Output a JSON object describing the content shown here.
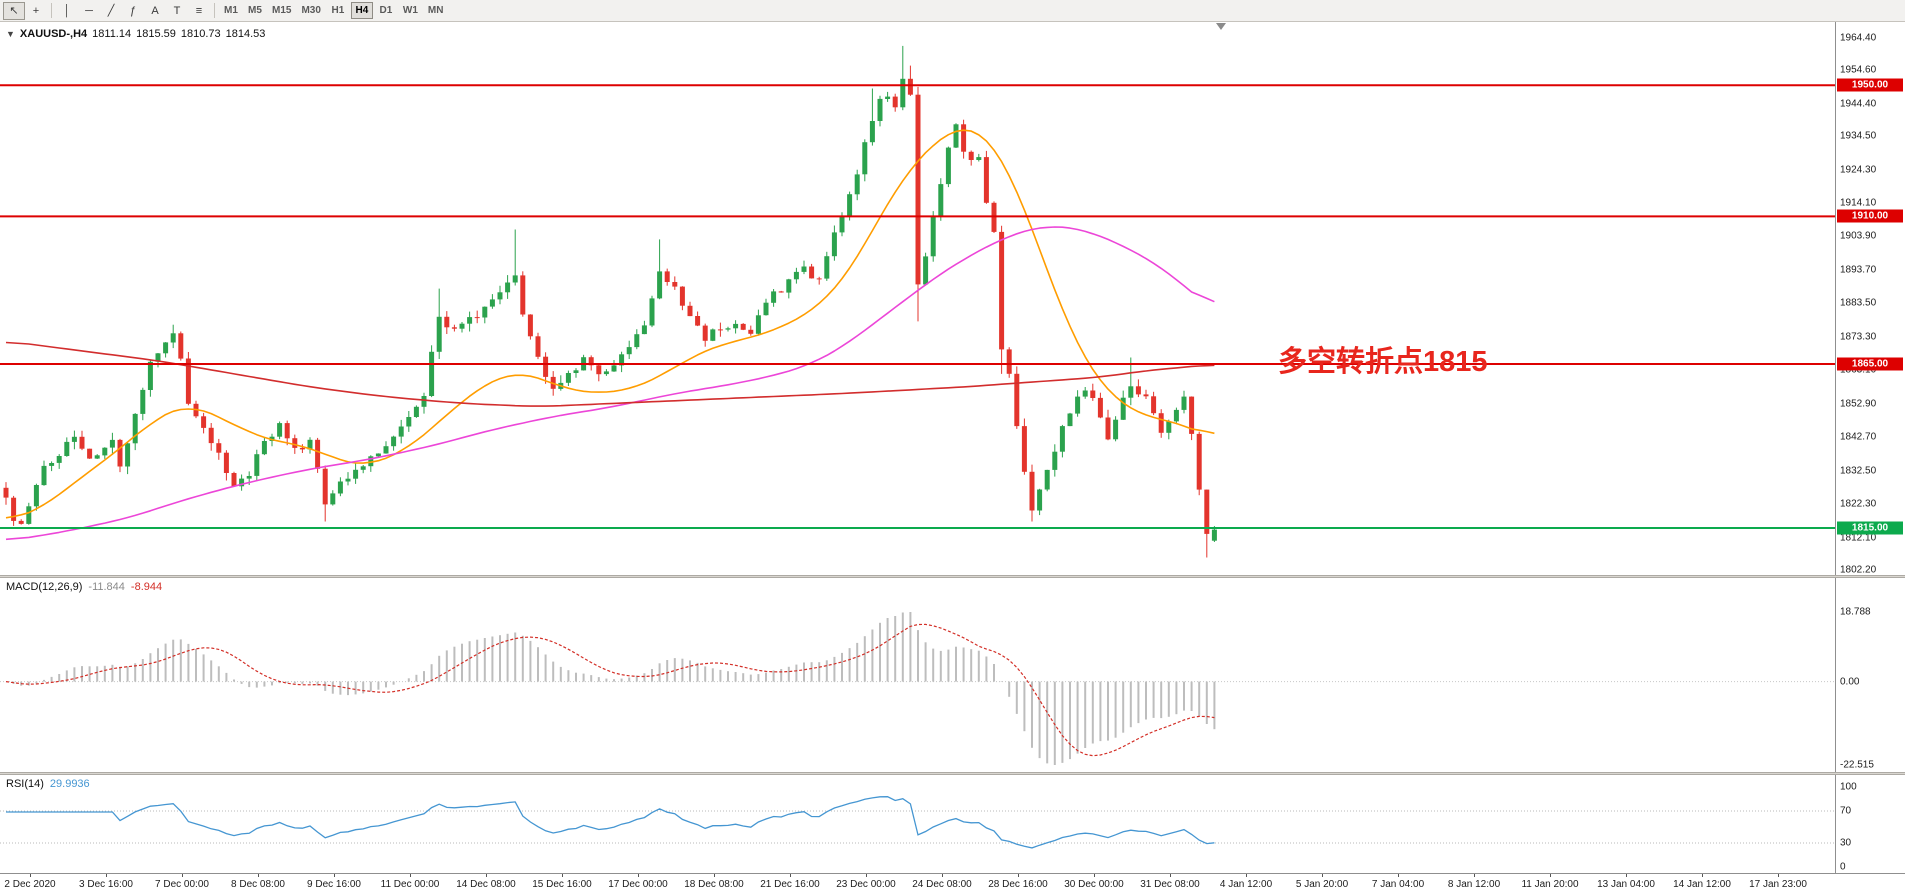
{
  "toolbar": {
    "tools": [
      {
        "name": "cursor",
        "glyph": "↖",
        "active": true
      },
      {
        "name": "crosshair",
        "glyph": "+"
      },
      {
        "sep": true
      },
      {
        "name": "vertical-line",
        "glyph": "│"
      },
      {
        "name": "horizontal-line",
        "glyph": "─"
      },
      {
        "name": "trendline",
        "glyph": "╱"
      },
      {
        "name": "fibonacci",
        "glyph": "ƒ"
      },
      {
        "name": "text",
        "glyph": "A"
      },
      {
        "name": "text-label",
        "glyph": "T"
      },
      {
        "name": "objects-list",
        "glyph": "≡"
      },
      {
        "sep": true
      }
    ],
    "timeframes": [
      "M1",
      "M5",
      "M15",
      "M30",
      "H1",
      "H4",
      "D1",
      "W1",
      "MN"
    ],
    "active_timeframe": "H4"
  },
  "chart_header": {
    "symbol": "XAUUSD-,H4",
    "open": "1811.14",
    "high": "1815.59",
    "low": "1810.73",
    "close": "1814.53"
  },
  "annotation": {
    "text": "多空转折点1815",
    "color": "#e8261d"
  },
  "indicators": {
    "macd": {
      "title": "MACD(12,26,9)",
      "value_main": "-11.844",
      "value_signal": "-8.944",
      "axis": [
        "18.788",
        "0.00",
        "-22.515"
      ],
      "histogram_color": "#bdbdbd",
      "signal_color": "#d32f27"
    },
    "rsi": {
      "title": "RSI(14)",
      "value": "29.9936",
      "axis": [
        "100",
        "70",
        "30",
        "0"
      ],
      "levels": [
        70,
        30
      ],
      "line_color": "#4596d2"
    }
  },
  "time_axis": [
    "2 Dec 2020",
    "3 Dec 16:00",
    "7 Dec 00:00",
    "8 Dec 08:00",
    "9 Dec 16:00",
    "11 Dec 00:00",
    "14 Dec 08:00",
    "15 Dec 16:00",
    "17 Dec 00:00",
    "18 Dec 08:00",
    "21 Dec 16:00",
    "23 Dec 00:00",
    "24 Dec 08:00",
    "28 Dec 16:00",
    "30 Dec 00:00",
    "31 Dec 08:00",
    "4 Jan 12:00",
    "5 Jan 20:00",
    "7 Jan 04:00",
    "8 Jan 12:00",
    "11 Jan 20:00",
    "13 Jan 04:00",
    "14 Jan 12:00",
    "17 Jan 23:00"
  ],
  "chart_data": {
    "type": "candlestick",
    "symbol": "XAUUSD",
    "timeframe": "H4",
    "price_axis_ticks": [
      "1964.40",
      "1954.60",
      "1944.40",
      "1934.50",
      "1924.30",
      "1914.10",
      "1903.90",
      "1893.70",
      "1883.50",
      "1873.30",
      "1863.10",
      "1852.90",
      "1842.70",
      "1832.50",
      "1822.30",
      "1812.10",
      "1802.20"
    ],
    "horizontal_lines": [
      {
        "price": 1950.0,
        "label": "1950.00",
        "color": "#dd0000"
      },
      {
        "price": 1910.0,
        "label": "1910.00",
        "color": "#dd0000"
      },
      {
        "price": 1865.0,
        "label": "1865.00",
        "color": "#dd0000"
      },
      {
        "price": 1815.0,
        "label": "1815.00",
        "color": "#0caa4d"
      }
    ],
    "last_candle": {
      "open": 1811.14,
      "high": 1815.59,
      "low": 1810.73,
      "close": 1814.53
    },
    "candle_count": 160,
    "up_color": "#2ba24d",
    "down_color": "#e3342c",
    "close_path": [
      [
        0,
        1824
      ],
      [
        1,
        1818
      ],
      [
        2,
        1815
      ],
      [
        5,
        1834
      ],
      [
        9,
        1842
      ],
      [
        11,
        1836
      ],
      [
        14,
        1842
      ],
      [
        15,
        1833
      ],
      [
        17,
        1849
      ],
      [
        19,
        1866
      ],
      [
        21,
        1871
      ],
      [
        22,
        1874
      ],
      [
        23,
        1866
      ],
      [
        24,
        1854
      ],
      [
        26,
        1846
      ],
      [
        28,
        1837
      ],
      [
        30,
        1828
      ],
      [
        32,
        1832
      ],
      [
        34,
        1842
      ],
      [
        36,
        1846
      ],
      [
        38,
        1839
      ],
      [
        40,
        1841
      ],
      [
        42,
        1823
      ],
      [
        44,
        1828
      ],
      [
        46,
        1833
      ],
      [
        49,
        1838
      ],
      [
        51,
        1842
      ],
      [
        53,
        1848
      ],
      [
        55,
        1856
      ],
      [
        57,
        1879
      ],
      [
        59,
        1875
      ],
      [
        61,
        1879
      ],
      [
        63,
        1882
      ],
      [
        65,
        1886
      ],
      [
        67,
        1893
      ],
      [
        68,
        1881
      ],
      [
        70,
        1866
      ],
      [
        72,
        1858
      ],
      [
        74,
        1862
      ],
      [
        76,
        1866
      ],
      [
        78,
        1861
      ],
      [
        80,
        1865
      ],
      [
        82,
        1870
      ],
      [
        84,
        1878
      ],
      [
        86,
        1894
      ],
      [
        88,
        1888
      ],
      [
        90,
        1880
      ],
      [
        92,
        1873
      ],
      [
        94,
        1876
      ],
      [
        96,
        1878
      ],
      [
        98,
        1874
      ],
      [
        99,
        1879
      ],
      [
        101,
        1886
      ],
      [
        103,
        1890
      ],
      [
        105,
        1894
      ],
      [
        107,
        1890
      ],
      [
        108,
        1897
      ],
      [
        110,
        1911
      ],
      [
        112,
        1924
      ],
      [
        114,
        1939
      ],
      [
        115,
        1947
      ],
      [
        117,
        1944
      ],
      [
        118,
        1951
      ],
      [
        119,
        1947
      ],
      [
        120,
        1889
      ],
      [
        121,
        1899
      ],
      [
        123,
        1919
      ],
      [
        124,
        1931
      ],
      [
        125,
        1937
      ],
      [
        126,
        1930
      ],
      [
        128,
        1927
      ],
      [
        129,
        1914
      ],
      [
        130,
        1904
      ],
      [
        131,
        1869
      ],
      [
        132,
        1861
      ],
      [
        133,
        1845
      ],
      [
        134,
        1832
      ],
      [
        135,
        1821
      ],
      [
        136,
        1827
      ],
      [
        138,
        1838
      ],
      [
        139,
        1845
      ],
      [
        140,
        1851
      ],
      [
        142,
        1857
      ],
      [
        143,
        1854
      ],
      [
        144,
        1849
      ],
      [
        145,
        1843
      ],
      [
        146,
        1848
      ],
      [
        147,
        1854
      ],
      [
        148,
        1859
      ],
      [
        150,
        1855
      ],
      [
        151,
        1849
      ],
      [
        152,
        1845
      ],
      [
        153,
        1847
      ],
      [
        154,
        1851
      ],
      [
        155,
        1854
      ],
      [
        156,
        1844
      ],
      [
        157,
        1828
      ],
      [
        158,
        1813
      ],
      [
        159,
        1814.53
      ]
    ],
    "wick_overrides": [
      {
        "i": 22,
        "high": 1877
      },
      {
        "i": 42,
        "low": 1817
      },
      {
        "i": 57,
        "high": 1888
      },
      {
        "i": 67,
        "high": 1906
      },
      {
        "i": 86,
        "high": 1903
      },
      {
        "i": 114,
        "high": 1949
      },
      {
        "i": 118,
        "high": 1962
      },
      {
        "i": 119,
        "high": 1956
      },
      {
        "i": 120,
        "low": 1878
      },
      {
        "i": 131,
        "low": 1862
      },
      {
        "i": 135,
        "low": 1817
      },
      {
        "i": 148,
        "high": 1867
      },
      {
        "i": 158,
        "low": 1806
      }
    ],
    "moving_averages": [
      {
        "name": "ma-fast",
        "color": "#ff9d00",
        "path": [
          [
            0,
            1817
          ],
          [
            4,
            1820
          ],
          [
            8,
            1827
          ],
          [
            12,
            1834
          ],
          [
            16,
            1841
          ],
          [
            20,
            1849
          ],
          [
            24,
            1853
          ],
          [
            28,
            1849
          ],
          [
            32,
            1844
          ],
          [
            36,
            1841
          ],
          [
            40,
            1840
          ],
          [
            44,
            1835
          ],
          [
            48,
            1834
          ],
          [
            52,
            1838
          ],
          [
            56,
            1845
          ],
          [
            60,
            1854
          ],
          [
            64,
            1860
          ],
          [
            67,
            1863
          ],
          [
            70,
            1861
          ],
          [
            74,
            1857
          ],
          [
            78,
            1856
          ],
          [
            82,
            1857
          ],
          [
            86,
            1861
          ],
          [
            90,
            1867
          ],
          [
            94,
            1871
          ],
          [
            98,
            1873
          ],
          [
            102,
            1876
          ],
          [
            106,
            1881
          ],
          [
            109,
            1887
          ],
          [
            112,
            1897
          ],
          [
            115,
            1910
          ],
          [
            118,
            1922
          ],
          [
            121,
            1930
          ],
          [
            124,
            1936
          ],
          [
            126,
            1938
          ],
          [
            128,
            1937
          ],
          [
            130,
            1932
          ],
          [
            132,
            1924
          ],
          [
            134,
            1913
          ],
          [
            136,
            1900
          ],
          [
            138,
            1887
          ],
          [
            140,
            1875
          ],
          [
            142,
            1866
          ],
          [
            144,
            1859
          ],
          [
            146,
            1854
          ],
          [
            148,
            1851
          ],
          [
            150,
            1849
          ],
          [
            152,
            1848
          ],
          [
            154,
            1847
          ],
          [
            156,
            1846
          ],
          [
            158,
            1843
          ],
          [
            159,
            1842
          ]
        ]
      },
      {
        "name": "ma-medium",
        "color": "#ec46d8",
        "path": [
          [
            0,
            1811
          ],
          [
            8,
            1814
          ],
          [
            16,
            1818
          ],
          [
            24,
            1824
          ],
          [
            32,
            1829
          ],
          [
            40,
            1833
          ],
          [
            48,
            1836
          ],
          [
            56,
            1840
          ],
          [
            64,
            1845
          ],
          [
            72,
            1849
          ],
          [
            80,
            1852
          ],
          [
            88,
            1856
          ],
          [
            96,
            1859
          ],
          [
            102,
            1862
          ],
          [
            106,
            1865
          ],
          [
            110,
            1870
          ],
          [
            114,
            1877
          ],
          [
            118,
            1884
          ],
          [
            122,
            1891
          ],
          [
            126,
            1897
          ],
          [
            130,
            1902
          ],
          [
            133,
            1905
          ],
          [
            136,
            1907
          ],
          [
            139,
            1907
          ],
          [
            142,
            1906
          ],
          [
            145,
            1903
          ],
          [
            148,
            1900
          ],
          [
            151,
            1896
          ],
          [
            154,
            1891
          ],
          [
            156,
            1887
          ],
          [
            158,
            1883
          ],
          [
            159,
            1881
          ]
        ]
      },
      {
        "name": "ma-slow",
        "color": "#d22d2d",
        "path": [
          [
            0,
            1872
          ],
          [
            10,
            1869
          ],
          [
            20,
            1866
          ],
          [
            30,
            1862
          ],
          [
            40,
            1858
          ],
          [
            50,
            1855
          ],
          [
            60,
            1853
          ],
          [
            70,
            1852
          ],
          [
            80,
            1853
          ],
          [
            90,
            1854
          ],
          [
            100,
            1855
          ],
          [
            110,
            1856
          ],
          [
            118,
            1857
          ],
          [
            126,
            1858
          ],
          [
            132,
            1859
          ],
          [
            138,
            1860
          ],
          [
            144,
            1861
          ],
          [
            150,
            1863
          ],
          [
            155,
            1864
          ],
          [
            159,
            1865
          ]
        ]
      }
    ]
  }
}
